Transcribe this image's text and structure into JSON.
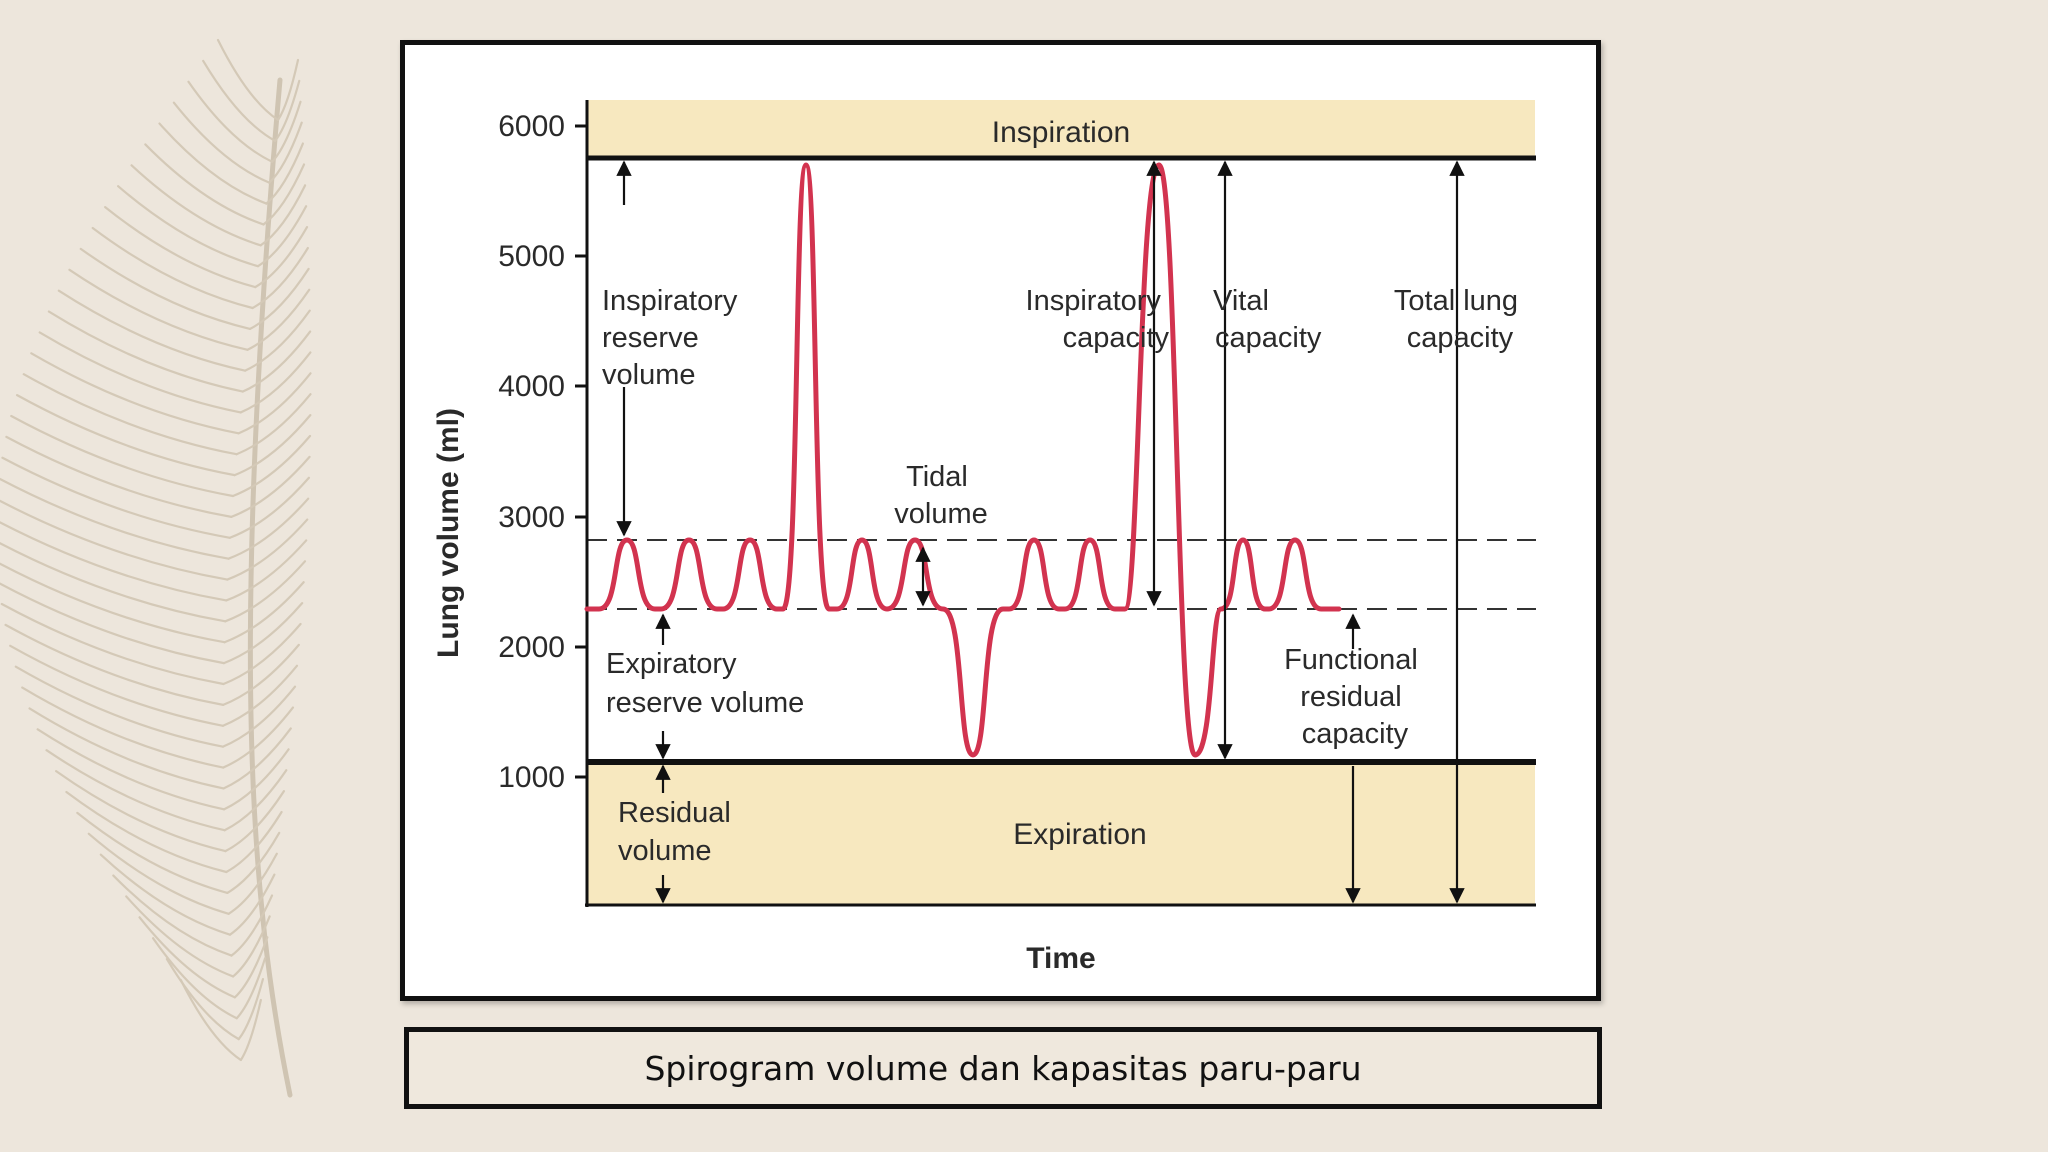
{
  "diagram": {
    "y_axis_label": "Lung volume (ml)",
    "x_axis_label": "Time",
    "y_ticks": [
      "6000",
      "5000",
      "4000",
      "3000",
      "2000",
      "1000"
    ],
    "band_top_label": "Inspiration",
    "band_bottom_label": "Expiration",
    "labels": {
      "irv": [
        "Inspiratory",
        "reserve",
        "volume"
      ],
      "tidal": [
        "Tidal",
        "volume"
      ],
      "erv": [
        "Expiratory",
        "reserve volume"
      ],
      "rv": [
        "Residual",
        "volume"
      ],
      "ic": [
        "Inspiratory",
        "capacity"
      ],
      "vc": [
        "Vital",
        "capacity"
      ],
      "tlc": [
        "Total lung",
        "capacity"
      ],
      "frc": [
        "Functional",
        "residual",
        "capacity"
      ]
    },
    "colors": {
      "trace": "#d2334f",
      "band": "#f7e8bf",
      "axis": "#111111"
    }
  },
  "caption": "Spirogram volume dan kapasitas paru-paru"
}
